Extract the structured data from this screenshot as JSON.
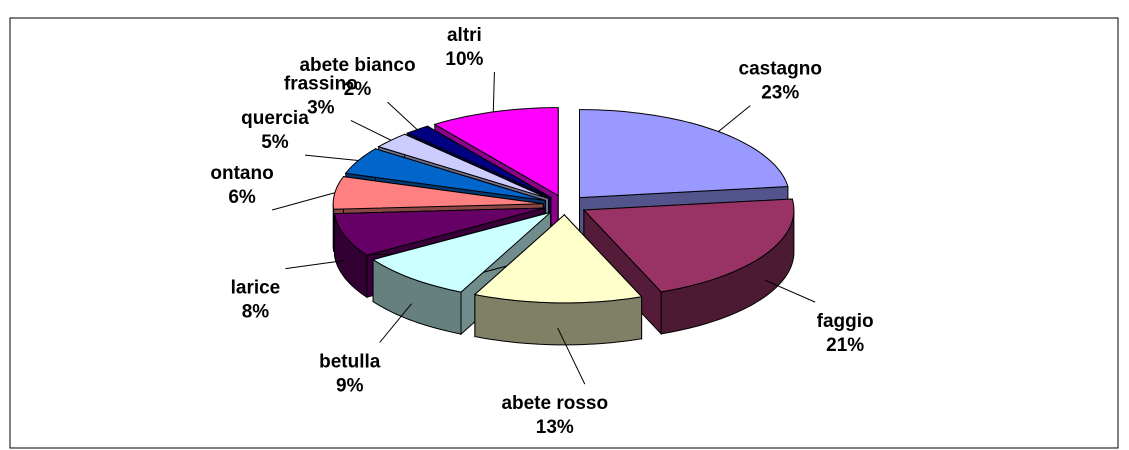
{
  "chart_data": {
    "type": "pie3d",
    "categories": [
      "castagno",
      "faggio",
      "abete rosso",
      "betulla",
      "larice",
      "ontano",
      "quercia",
      "frassino",
      "abete bianco",
      "altri"
    ],
    "values": [
      23,
      21,
      13,
      9,
      8,
      6,
      5,
      3,
      2,
      10
    ],
    "value_labels": [
      "23%",
      "21%",
      "13%",
      "9%",
      "8%",
      "6%",
      "5%",
      "3%",
      "2%",
      "10%"
    ],
    "colors": [
      "#9999ff",
      "#993366",
      "#ffffcc",
      "#ccffff",
      "#660066",
      "#ff8080",
      "#0066cc",
      "#ccccff",
      "#000080",
      "#ff00ff"
    ]
  }
}
